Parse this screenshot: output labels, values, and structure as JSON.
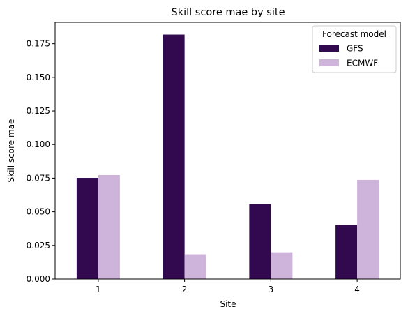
{
  "chart_data": {
    "type": "bar",
    "title": "Skill score mae by site",
    "xlabel": "Site",
    "ylabel": "Skill score mae",
    "categories": [
      "1",
      "2",
      "3",
      "4"
    ],
    "series": [
      {
        "name": "GFS",
        "color": "#32084f",
        "values": [
          0.0752,
          0.1818,
          0.0557,
          0.0402
        ]
      },
      {
        "name": "ECMWF",
        "color": "#ceb4da",
        "values": [
          0.0773,
          0.0184,
          0.0199,
          0.0737
        ]
      }
    ],
    "ylim": [
      0,
      0.1909
    ],
    "yticks": [
      "0.000",
      "0.025",
      "0.050",
      "0.075",
      "0.100",
      "0.125",
      "0.150",
      "0.175"
    ],
    "ytick_values": [
      0,
      0.025,
      0.05,
      0.075,
      0.1,
      0.125,
      0.15,
      0.175
    ],
    "legend": {
      "title": "Forecast model",
      "placement": "top-right"
    },
    "grid": false
  }
}
